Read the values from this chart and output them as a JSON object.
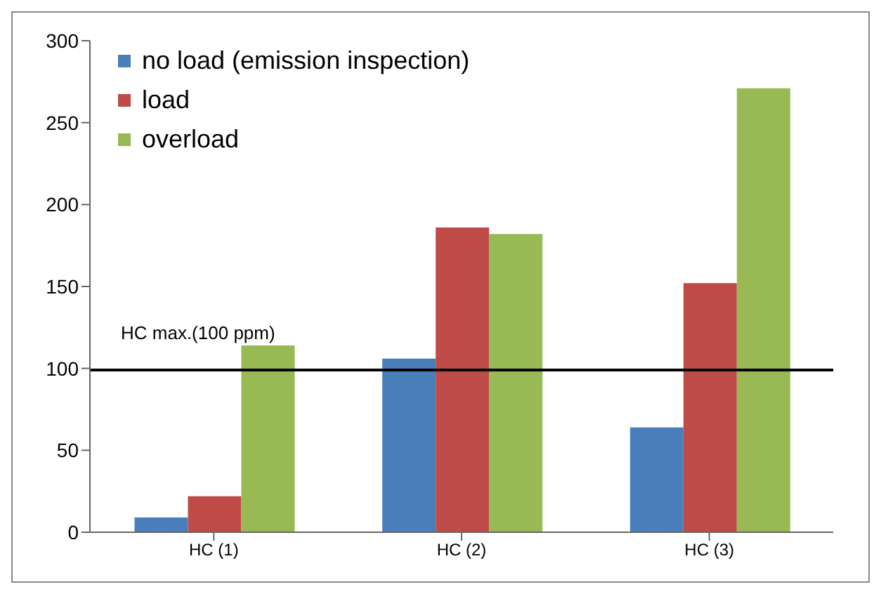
{
  "chart_data": {
    "type": "bar",
    "categories": [
      "HC (1)",
      "HC (2)",
      "HC (3)"
    ],
    "series": [
      {
        "name": "no load (emission inspection)",
        "color": "#4a7ebb",
        "values": [
          9,
          106,
          64
        ]
      },
      {
        "name": "load",
        "color": "#be4b48",
        "values": [
          22,
          186,
          152
        ]
      },
      {
        "name": "overload",
        "color": "#98b954",
        "values": [
          114,
          182,
          271
        ]
      }
    ],
    "ylim": [
      0,
      300
    ],
    "yticks": [
      0,
      50,
      100,
      150,
      200,
      250,
      300
    ],
    "grid": false,
    "legend": "top left",
    "ref_lines": [
      {
        "axis": "y",
        "value": 99,
        "label": "HC max.(100 ppm)",
        "color": "#000000"
      }
    ]
  }
}
